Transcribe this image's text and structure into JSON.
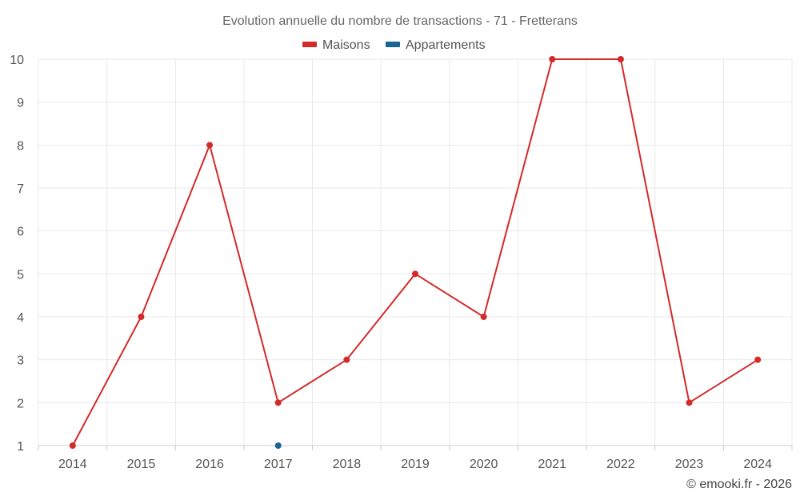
{
  "chart_data": {
    "type": "line",
    "title": "Evolution annuelle du nombre de transactions - 71 - Fretterans",
    "x": [
      "2014",
      "2015",
      "2016",
      "2017",
      "2018",
      "2019",
      "2020",
      "2021",
      "2022",
      "2023",
      "2024"
    ],
    "yticks": [
      "1",
      "2",
      "3",
      "4",
      "5",
      "6",
      "7",
      "8",
      "9",
      "10"
    ],
    "ylim": [
      1,
      10
    ],
    "grid": true,
    "legend_position": "top-center",
    "series": [
      {
        "name": "Maisons",
        "color": "#d42a2a",
        "values": [
          1,
          4,
          8,
          2,
          3,
          5,
          4,
          10,
          10,
          2,
          3
        ]
      },
      {
        "name": "Appartements",
        "color": "#1a6496",
        "values": [
          null,
          null,
          null,
          1,
          null,
          null,
          null,
          null,
          null,
          null,
          null
        ]
      }
    ]
  },
  "credit": "© emooki.fr - 2026"
}
